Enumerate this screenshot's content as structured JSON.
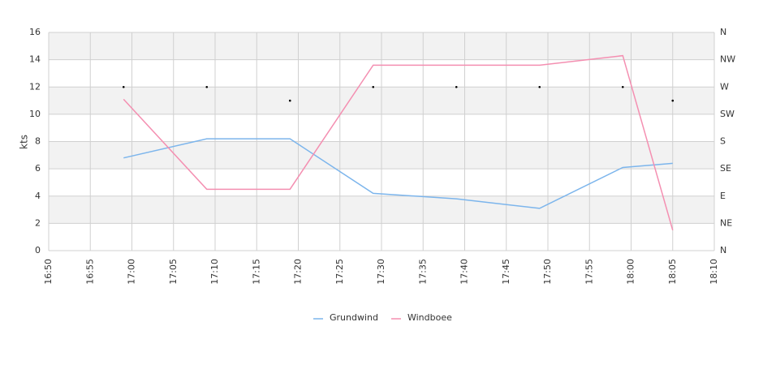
{
  "chart_data": {
    "type": "line",
    "y_label": "kts",
    "x": [
      "16:59",
      "17:09",
      "17:19",
      "17:29",
      "17:39",
      "17:49",
      "17:59",
      "18:05"
    ],
    "series": [
      {
        "name": "Grundwind",
        "color": "#7cb5ec",
        "values": [
          6.8,
          8.2,
          8.2,
          4.2,
          3.8,
          3.1,
          6.1,
          6.4
        ]
      },
      {
        "name": "Windboee",
        "color": "#f48fb1",
        "values": [
          11.1,
          4.5,
          4.5,
          13.6,
          13.6,
          13.6,
          14.3,
          1.5
        ]
      },
      {
        "type": "scatter",
        "axis": "y2",
        "color": "#000000",
        "values": [
          270,
          270,
          247.5,
          270,
          270,
          270,
          270,
          247.5
        ]
      }
    ],
    "xlim": [
      "16:50",
      "18:10"
    ],
    "xticks": [
      "16:50",
      "16:55",
      "17:00",
      "17:05",
      "17:10",
      "17:15",
      "17:20",
      "17:25",
      "17:30",
      "17:35",
      "17:40",
      "17:45",
      "17:50",
      "17:55",
      "18:00",
      "18:05",
      "18:10"
    ],
    "ylim": [
      0,
      16
    ],
    "yticks": [
      0,
      2,
      4,
      6,
      8,
      10,
      12,
      14,
      16
    ],
    "y2lim": [
      0,
      360
    ],
    "y2ticks": [
      {
        "value": 0,
        "label": "N"
      },
      {
        "value": 45,
        "label": "NE"
      },
      {
        "value": 90,
        "label": "E"
      },
      {
        "value": 135,
        "label": "SE"
      },
      {
        "value": 180,
        "label": "S"
      },
      {
        "value": 225,
        "label": "SW"
      },
      {
        "value": 270,
        "label": "W"
      },
      {
        "value": 315,
        "label": "NW"
      },
      {
        "value": 360,
        "label": "N"
      }
    ],
    "grid": true,
    "legend": "bottom"
  }
}
